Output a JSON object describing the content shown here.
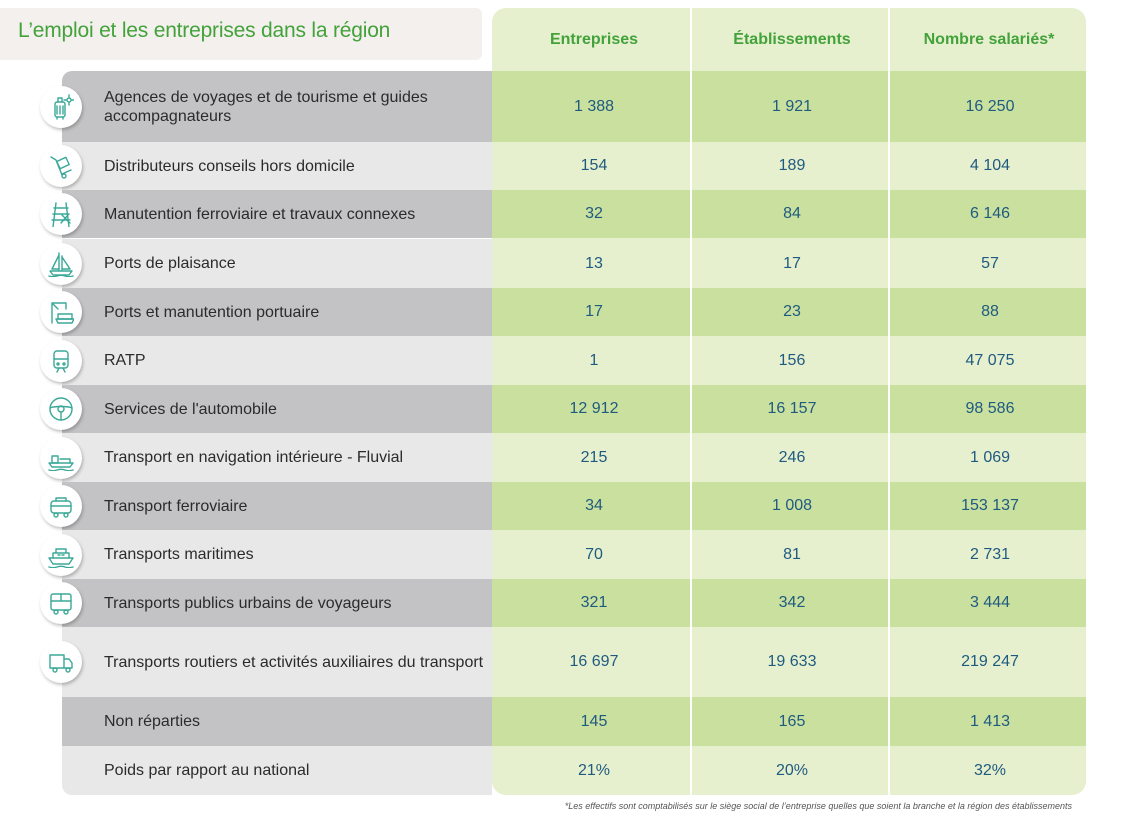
{
  "title": "L’emploi et les entreprises dans la région",
  "columns": [
    "Entreprises",
    "Établissements",
    "Nombre salariés*"
  ],
  "rows": [
    {
      "label": "Agences de voyages et de tourisme et guides accompagnateurs",
      "icon": "luggage-icon",
      "values": [
        "1 388",
        "1 921",
        "16 250"
      ]
    },
    {
      "label": "Distributeurs conseils hors domicile",
      "icon": "hand-truck-icon",
      "values": [
        "154",
        "189",
        "4 104"
      ]
    },
    {
      "label": "Manutention ferroviaire et travaux connexes",
      "icon": "rail-tools-icon",
      "values": [
        "32",
        "84",
        "6 146"
      ]
    },
    {
      "label": "Ports de plaisance",
      "icon": "sailboat-icon",
      "values": [
        "13",
        "17",
        "57"
      ]
    },
    {
      "label": "Ports et manutention portuaire",
      "icon": "port-crane-icon",
      "values": [
        "17",
        "23",
        "88"
      ]
    },
    {
      "label": "RATP",
      "icon": "metro-icon",
      "values": [
        "1",
        "156",
        "47 075"
      ]
    },
    {
      "label": "Services de l'automobile",
      "icon": "steering-wheel-icon",
      "values": [
        "12 912",
        "16 157",
        "98 586"
      ]
    },
    {
      "label": "Transport en navigation intérieure - Fluvial",
      "icon": "barge-icon",
      "values": [
        "215",
        "246",
        "1 069"
      ]
    },
    {
      "label": "Transport ferroviaire",
      "icon": "train-icon",
      "values": [
        "34",
        "1 008",
        "153 137"
      ]
    },
    {
      "label": "Transports maritimes",
      "icon": "ship-icon",
      "values": [
        "70",
        "81",
        "2 731"
      ]
    },
    {
      "label": "Transports publics urbains de voyageurs",
      "icon": "bus-icon",
      "values": [
        "321",
        "342",
        "3 444"
      ]
    },
    {
      "label": "Transports routiers et activités auxiliaires du transport",
      "icon": "truck-icon",
      "values": [
        "16 697",
        "19 633",
        "219 247"
      ]
    },
    {
      "label": "Non réparties",
      "icon": "",
      "values": [
        "145",
        "165",
        "1 413"
      ]
    },
    {
      "label": "Poids par rapport au national",
      "icon": "",
      "values": [
        "21%",
        "20%",
        "32%"
      ]
    }
  ],
  "footnote": "*Les effectifs sont comptabilisés sur le siège social de l’entreprise quelles que soient la branche et la région des établissements",
  "colors": {
    "title_green": "#43a23a",
    "value_blue": "#1f5a80",
    "row_green_dark": "#c9e09f",
    "row_green_light": "#e6f0cf",
    "row_grey_dark": "#c3c3c5",
    "row_grey_light": "#e8e8e9",
    "icon_teal": "#3aa897"
  }
}
